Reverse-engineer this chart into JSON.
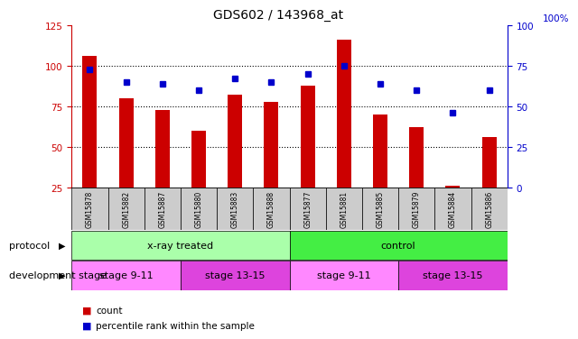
{
  "title": "GDS602 / 143968_at",
  "samples": [
    "GSM15878",
    "GSM15882",
    "GSM15887",
    "GSM15880",
    "GSM15883",
    "GSM15888",
    "GSM15877",
    "GSM15881",
    "GSM15885",
    "GSM15879",
    "GSM15884",
    "GSM15886"
  ],
  "counts": [
    106,
    80,
    73,
    60,
    82,
    78,
    88,
    116,
    70,
    62,
    26,
    56
  ],
  "percentiles": [
    73,
    65,
    64,
    60,
    67,
    65,
    70,
    75,
    64,
    60,
    46,
    60
  ],
  "ylim_left": [
    25,
    125
  ],
  "ylim_right": [
    0,
    100
  ],
  "yticks_left": [
    25,
    50,
    75,
    100,
    125
  ],
  "yticks_right": [
    0,
    25,
    50,
    75,
    100
  ],
  "bar_color": "#cc0000",
  "dot_color": "#0000cc",
  "protocol_groups": [
    {
      "label": "x-ray treated",
      "start": 0,
      "end": 5,
      "color": "#aaffaa"
    },
    {
      "label": "control",
      "start": 6,
      "end": 11,
      "color": "#44ee44"
    }
  ],
  "stage_groups": [
    {
      "label": "stage 9-11",
      "start": 0,
      "end": 2,
      "color": "#ff88ff"
    },
    {
      "label": "stage 13-15",
      "start": 3,
      "end": 5,
      "color": "#dd44dd"
    },
    {
      "label": "stage 9-11",
      "start": 6,
      "end": 8,
      "color": "#ff88ff"
    },
    {
      "label": "stage 13-15",
      "start": 9,
      "end": 11,
      "color": "#dd44dd"
    }
  ],
  "protocol_label": "protocol",
  "stage_label": "development stage",
  "legend_count": "count",
  "legend_percentile": "percentile rank within the sample",
  "title_color": "#000000",
  "left_axis_color": "#cc0000",
  "right_axis_color": "#0000cc",
  "bg_color": "#ffffff",
  "xticklabel_bg": "#cccccc",
  "bar_width": 0.4
}
